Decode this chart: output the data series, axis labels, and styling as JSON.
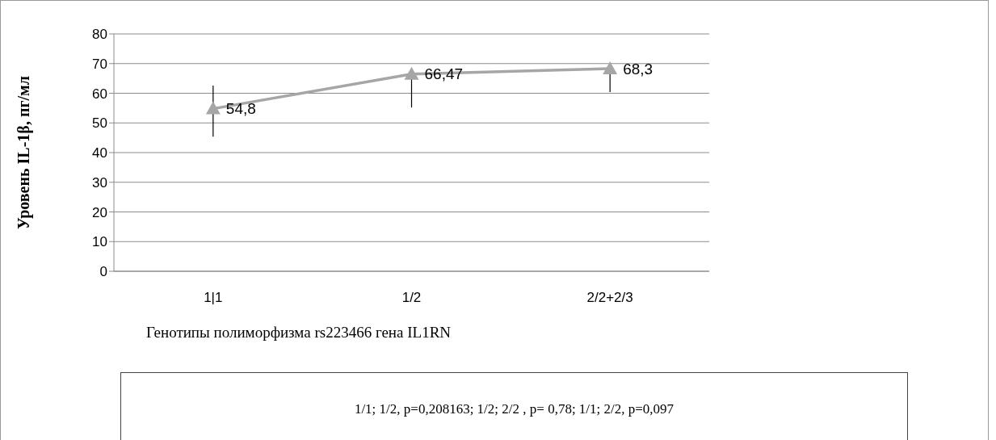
{
  "chart_data": {
    "type": "line",
    "categories": [
      "1|1",
      "1/2",
      "2/2+2/3"
    ],
    "series": [
      {
        "color": "#a6a6a6",
        "values": [
          54.8,
          66.47,
          68.3
        ],
        "value_labels": [
          "54,8",
          "66,47",
          "68,3"
        ],
        "errors": [
          [
            45.4,
            62.6
          ],
          [
            55.2,
            66.47
          ],
          [
            60.4,
            68.3
          ]
        ]
      }
    ],
    "ylabel": "Уровень IL-1β, пг/мл",
    "xlabel": "Генотипы полиморфизма rs223466 гена IL1RN",
    "annotations": [
      "1/1; 1/2, p=0,208163;  1/2; 2/2 , p= 0,78; 1/1; 2/2, p=0,097"
    ],
    "ylim": [
      0,
      80
    ],
    "yticks": [
      0,
      10,
      20,
      30,
      40,
      50,
      60,
      70,
      80
    ],
    "grid": "y",
    "marker": "triangle"
  }
}
